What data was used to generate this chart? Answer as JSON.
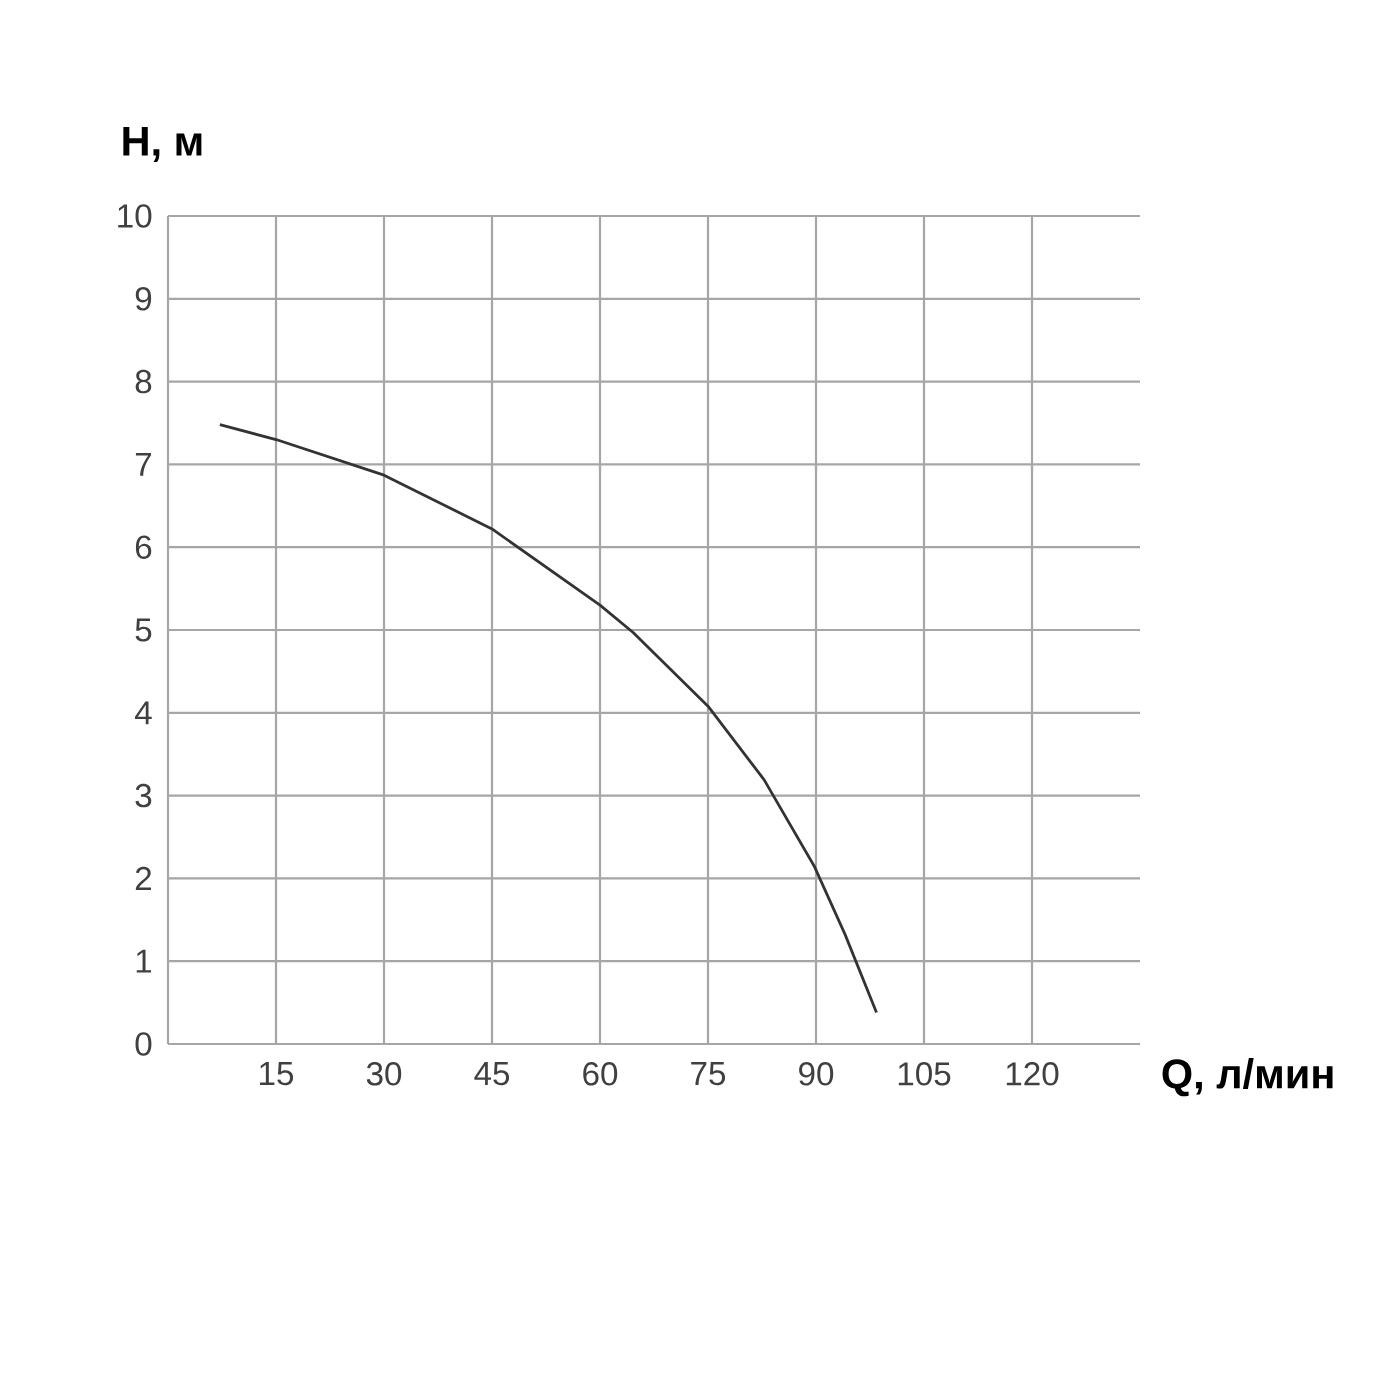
{
  "chart_data": {
    "type": "line",
    "xlabel": "Q, л/мин",
    "ylabel": "H, м",
    "x": [
      7.2,
      15,
      30,
      45,
      60,
      64.6,
      75,
      82.8,
      89.8,
      94,
      98.4
    ],
    "series": [
      {
        "color": "#333333",
        "values": [
          7.48,
          7.3,
          6.87,
          6.22,
          5.3,
          4.97,
          4.08,
          3.19,
          2.14,
          1.33,
          0.38
        ]
      }
    ],
    "xlim": [
      0,
      135
    ],
    "ylim": [
      0,
      10
    ],
    "xticks": [
      15,
      30,
      45,
      60,
      75,
      90,
      105,
      120
    ],
    "yticks": [
      0,
      1,
      2,
      3,
      4,
      5,
      6,
      7,
      8,
      9,
      10
    ],
    "grid": true,
    "marker": "none",
    "line_style": "solid"
  }
}
